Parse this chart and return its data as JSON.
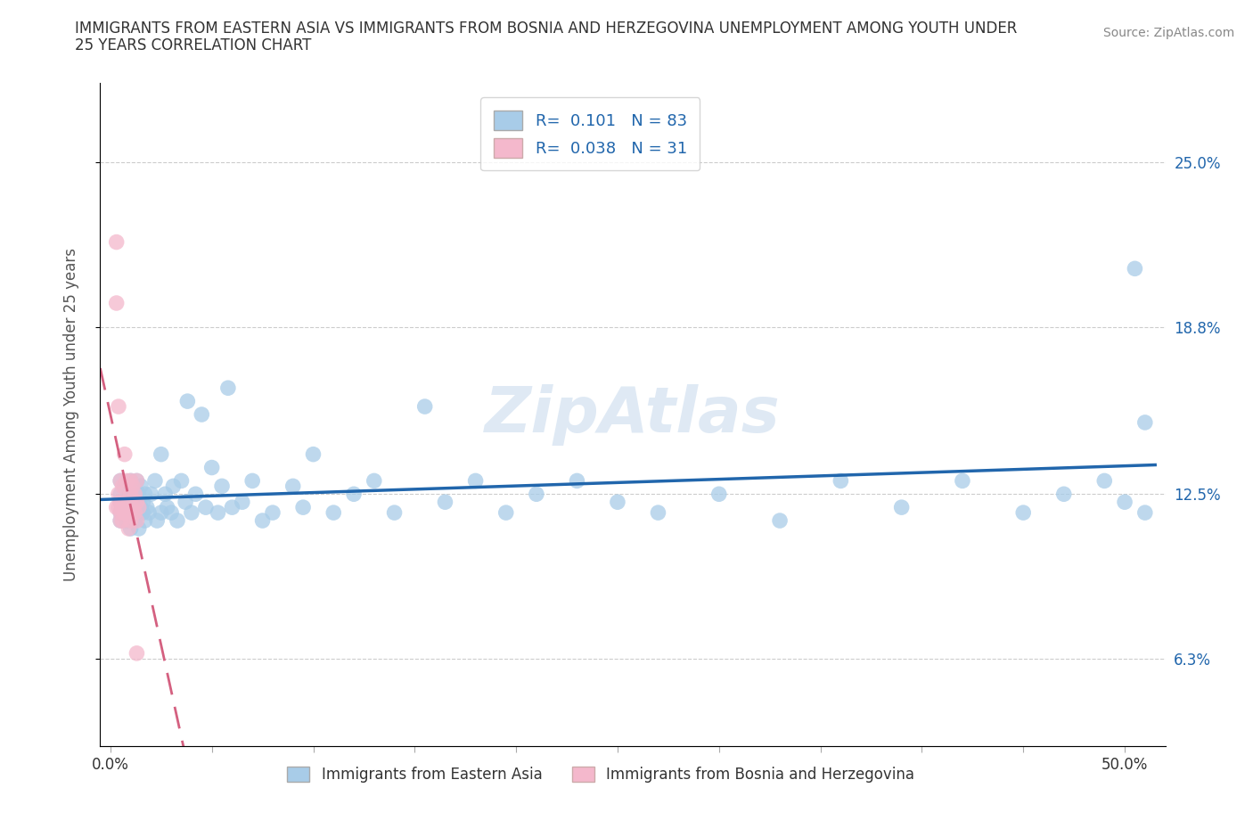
{
  "title_line1": "IMMIGRANTS FROM EASTERN ASIA VS IMMIGRANTS FROM BOSNIA AND HERZEGOVINA UNEMPLOYMENT AMONG YOUTH UNDER",
  "title_line2": "25 YEARS CORRELATION CHART",
  "source": "Source: ZipAtlas.com",
  "ylabel": "Unemployment Among Youth under 25 years",
  "x_tick_labels_ends": [
    "0.0%",
    "50.0%"
  ],
  "y_tick_labels_right": [
    "6.3%",
    "12.5%",
    "18.8%",
    "25.0%"
  ],
  "y_tick_vals": [
    0.063,
    0.125,
    0.188,
    0.25
  ],
  "xlim": [
    -0.005,
    0.52
  ],
  "ylim": [
    0.03,
    0.28
  ],
  "blue_R": "0.101",
  "blue_N": "83",
  "pink_R": "0.038",
  "pink_N": "31",
  "blue_color": "#a8cce8",
  "pink_color": "#f4b8cc",
  "blue_line_color": "#2166ac",
  "pink_line_color": "#d46080",
  "legend_label_blue": "Immigrants from Eastern Asia",
  "legend_label_pink": "Immigrants from Bosnia and Herzegovina",
  "watermark": "ZipAtlas",
  "blue_scatter_x": [
    0.005,
    0.005,
    0.005,
    0.005,
    0.005,
    0.007,
    0.007,
    0.008,
    0.008,
    0.009,
    0.009,
    0.01,
    0.01,
    0.01,
    0.01,
    0.01,
    0.012,
    0.012,
    0.013,
    0.013,
    0.014,
    0.014,
    0.015,
    0.015,
    0.016,
    0.016,
    0.017,
    0.017,
    0.018,
    0.019,
    0.02,
    0.022,
    0.023,
    0.025,
    0.025,
    0.027,
    0.028,
    0.03,
    0.031,
    0.033,
    0.035,
    0.037,
    0.038,
    0.04,
    0.042,
    0.045,
    0.047,
    0.05,
    0.053,
    0.055,
    0.058,
    0.06,
    0.065,
    0.07,
    0.075,
    0.08,
    0.09,
    0.095,
    0.1,
    0.11,
    0.12,
    0.13,
    0.14,
    0.155,
    0.165,
    0.18,
    0.195,
    0.21,
    0.23,
    0.25,
    0.27,
    0.3,
    0.33,
    0.36,
    0.39,
    0.42,
    0.45,
    0.47,
    0.49,
    0.5,
    0.505,
    0.51,
    0.51
  ],
  "blue_scatter_y": [
    0.118,
    0.125,
    0.122,
    0.13,
    0.115,
    0.12,
    0.128,
    0.115,
    0.122,
    0.118,
    0.125,
    0.12,
    0.13,
    0.112,
    0.125,
    0.118,
    0.122,
    0.115,
    0.13,
    0.118,
    0.125,
    0.112,
    0.12,
    0.128,
    0.118,
    0.122,
    0.115,
    0.125,
    0.12,
    0.118,
    0.125,
    0.13,
    0.115,
    0.14,
    0.118,
    0.125,
    0.12,
    0.118,
    0.128,
    0.115,
    0.13,
    0.122,
    0.16,
    0.118,
    0.125,
    0.155,
    0.12,
    0.135,
    0.118,
    0.128,
    0.165,
    0.12,
    0.122,
    0.13,
    0.115,
    0.118,
    0.128,
    0.12,
    0.14,
    0.118,
    0.125,
    0.13,
    0.118,
    0.158,
    0.122,
    0.13,
    0.118,
    0.125,
    0.13,
    0.122,
    0.118,
    0.125,
    0.115,
    0.13,
    0.12,
    0.13,
    0.118,
    0.125,
    0.13,
    0.122,
    0.21,
    0.118,
    0.152
  ],
  "pink_scatter_x": [
    0.003,
    0.003,
    0.003,
    0.004,
    0.004,
    0.004,
    0.005,
    0.005,
    0.005,
    0.005,
    0.006,
    0.006,
    0.006,
    0.007,
    0.007,
    0.008,
    0.008,
    0.009,
    0.009,
    0.01,
    0.01,
    0.01,
    0.011,
    0.011,
    0.012,
    0.012,
    0.013,
    0.013,
    0.013,
    0.013,
    0.014
  ],
  "pink_scatter_y": [
    0.12,
    0.22,
    0.197,
    0.158,
    0.12,
    0.125,
    0.118,
    0.13,
    0.115,
    0.122,
    0.128,
    0.115,
    0.12,
    0.14,
    0.118,
    0.13,
    0.122,
    0.118,
    0.112,
    0.125,
    0.13,
    0.115,
    0.128,
    0.12,
    0.125,
    0.118,
    0.13,
    0.122,
    0.115,
    0.065,
    0.12
  ]
}
